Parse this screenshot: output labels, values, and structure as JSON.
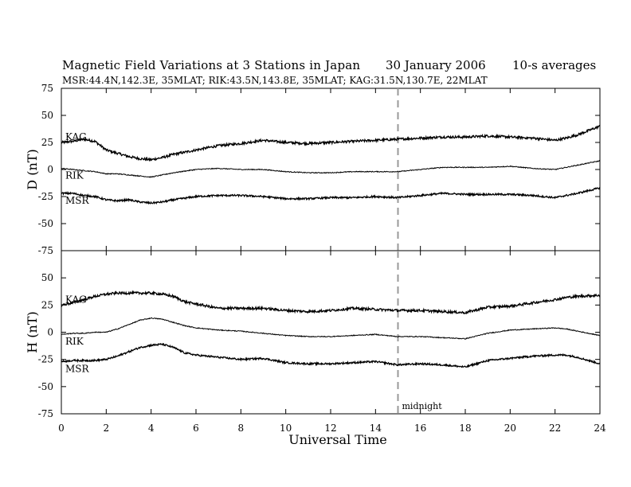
{
  "header": {
    "title": "Magnetic Field Variations at 3 Stations in Japan",
    "date": "30 January 2006",
    "averaging": "10-s averages",
    "stations": "MSR:44.4N,142.3E, 35MLAT;   RIK:43.5N,143.8E, 35MLAT;   KAG:31.5N,130.7E, 22MLAT"
  },
  "chart_data": {
    "type": "line",
    "xlabel": "Universal Time",
    "xlim": [
      0,
      24
    ],
    "xticks": [
      0,
      2,
      4,
      6,
      8,
      10,
      12,
      14,
      16,
      18,
      20,
      22,
      24
    ],
    "annotation": {
      "text": "midnight",
      "x": 15
    },
    "panels": [
      {
        "ylabel": "D (nT)",
        "ylim": [
          -75,
          75
        ],
        "yticks": [
          75,
          50,
          25,
          0,
          -25,
          -50,
          -75
        ],
        "series": [
          {
            "name": "KAG",
            "noise": 1.1,
            "x": [
              0,
              0.5,
              1,
              1.5,
              2,
              2.5,
              3,
              3.5,
              4,
              4.5,
              5,
              6,
              7,
              8,
              9,
              10,
              11,
              12,
              13,
              14,
              15,
              16,
              17,
              18,
              19,
              20,
              21,
              22,
              22.5,
              23,
              24
            ],
            "y": [
              25,
              26,
              28,
              26,
              18,
              15,
              12,
              10,
              9,
              11,
              14,
              18,
              22,
              24,
              27,
              25,
              24,
              25,
              26,
              27,
              28,
              29,
              30,
              30,
              31,
              30,
              29,
              27,
              29,
              32,
              40
            ]
          },
          {
            "name": "RIK",
            "noise": 0.4,
            "x": [
              0,
              0.5,
              1,
              1.5,
              2,
              2.5,
              3,
              3.5,
              4,
              4.5,
              5,
              6,
              7,
              8,
              9,
              10,
              11,
              12,
              13,
              14,
              15,
              16,
              17,
              18,
              19,
              20,
              21,
              22,
              22.5,
              23,
              24
            ],
            "y": [
              1,
              0,
              -1,
              -2,
              -4,
              -4,
              -5,
              -6,
              -7,
              -5,
              -3,
              0,
              1,
              0,
              0,
              -2,
              -3,
              -3,
              -2,
              -2,
              -2,
              0,
              2,
              2,
              2,
              3,
              1,
              0,
              2,
              4,
              8
            ]
          },
          {
            "name": "MSR",
            "noise": 0.8,
            "x": [
              0,
              0.5,
              1,
              1.5,
              2,
              2.5,
              3,
              3.5,
              4,
              4.5,
              5,
              6,
              7,
              8,
              9,
              10,
              11,
              12,
              13,
              14,
              15,
              16,
              17,
              18,
              19,
              20,
              21,
              22,
              22.5,
              23,
              24
            ],
            "y": [
              -22,
              -22,
              -24,
              -25,
              -28,
              -29,
              -28,
              -30,
              -31,
              -30,
              -28,
              -25,
              -24,
              -24,
              -25,
              -27,
              -27,
              -26,
              -26,
              -25,
              -26,
              -24,
              -22,
              -23,
              -23,
              -23,
              -24,
              -26,
              -24,
              -22,
              -17
            ]
          }
        ]
      },
      {
        "ylabel": "H (nT)",
        "ylim": [
          -75,
          75
        ],
        "yticks": [
          50,
          25,
          0,
          -25,
          -50,
          -75
        ],
        "series": [
          {
            "name": "KAG",
            "noise": 1.1,
            "x": [
              0,
              0.5,
              1,
              1.5,
              2,
              2.5,
              3,
              3.5,
              4,
              4.5,
              5,
              5.5,
              6,
              7,
              8,
              9,
              10,
              11,
              12,
              13,
              14,
              15,
              16,
              17,
              18,
              19,
              20,
              21,
              22,
              22.5,
              23,
              24
            ],
            "y": [
              25,
              27,
              30,
              33,
              35,
              36,
              36,
              36,
              36,
              35,
              33,
              28,
              26,
              22,
              22,
              22,
              20,
              19,
              20,
              22,
              21,
              20,
              20,
              19,
              18,
              23,
              24,
              27,
              30,
              32,
              33,
              34
            ]
          },
          {
            "name": "RIK",
            "noise": 0.4,
            "x": [
              0,
              0.5,
              1,
              1.5,
              2,
              2.5,
              3,
              3.5,
              4,
              4.5,
              5,
              5.5,
              6,
              7,
              8,
              9,
              10,
              11,
              12,
              13,
              14,
              15,
              16,
              17,
              18,
              19,
              20,
              21,
              22,
              22.5,
              23,
              24
            ],
            "y": [
              -2,
              -1,
              -1,
              0,
              0,
              3,
              7,
              11,
              13,
              12,
              9,
              6,
              4,
              2,
              1,
              -1,
              -3,
              -4,
              -4,
              -3,
              -2,
              -4,
              -4,
              -5,
              -6,
              -1,
              2,
              3,
              4,
              3,
              1,
              -3
            ]
          },
          {
            "name": "MSR",
            "noise": 0.8,
            "x": [
              0,
              0.5,
              1,
              1.5,
              2,
              2.5,
              3,
              3.5,
              4,
              4.5,
              5,
              5.5,
              6,
              7,
              8,
              9,
              10,
              11,
              12,
              13,
              14,
              15,
              16,
              17,
              18,
              19,
              20,
              21,
              22,
              22.5,
              23,
              24
            ],
            "y": [
              -27,
              -26,
              -26,
              -26,
              -25,
              -22,
              -18,
              -14,
              -12,
              -11,
              -14,
              -19,
              -21,
              -23,
              -25,
              -24,
              -28,
              -29,
              -29,
              -28,
              -27,
              -30,
              -29,
              -30,
              -32,
              -26,
              -24,
              -22,
              -21,
              -21,
              -23,
              -29
            ]
          }
        ]
      }
    ]
  }
}
